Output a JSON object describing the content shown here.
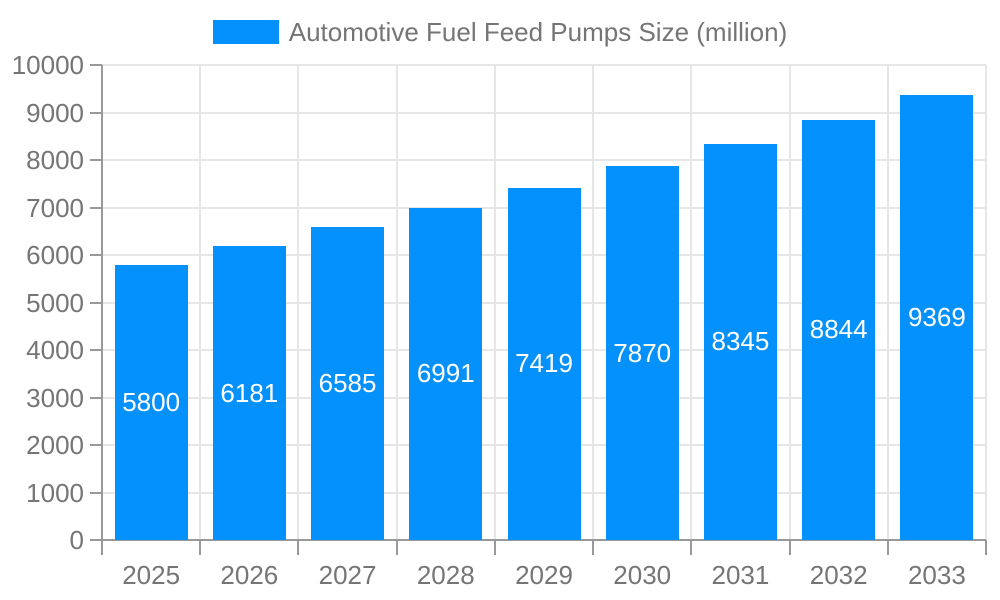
{
  "legend": {
    "label": "Automotive Fuel Feed Pumps Size (million)"
  },
  "chart_data": {
    "type": "bar",
    "title": "Automotive Fuel Feed Pumps Size (million)",
    "categories": [
      "2025",
      "2026",
      "2027",
      "2028",
      "2029",
      "2030",
      "2031",
      "2032",
      "2033"
    ],
    "values": [
      5800,
      6181,
      6585,
      6991,
      7419,
      7870,
      8345,
      8844,
      9369
    ],
    "xlabel": "",
    "ylabel": "",
    "ylim": [
      0,
      10000
    ],
    "ytick_step": 1000,
    "grid": true,
    "legend_position": "top",
    "value_labels": "inside-center",
    "colors": {
      "bar": "#0591FB",
      "value_label": "#FFFFFF",
      "axis_text": "#757575",
      "axis_line": "#999999",
      "gridline": "#E6E6E6",
      "background": "#FFFFFF"
    }
  }
}
